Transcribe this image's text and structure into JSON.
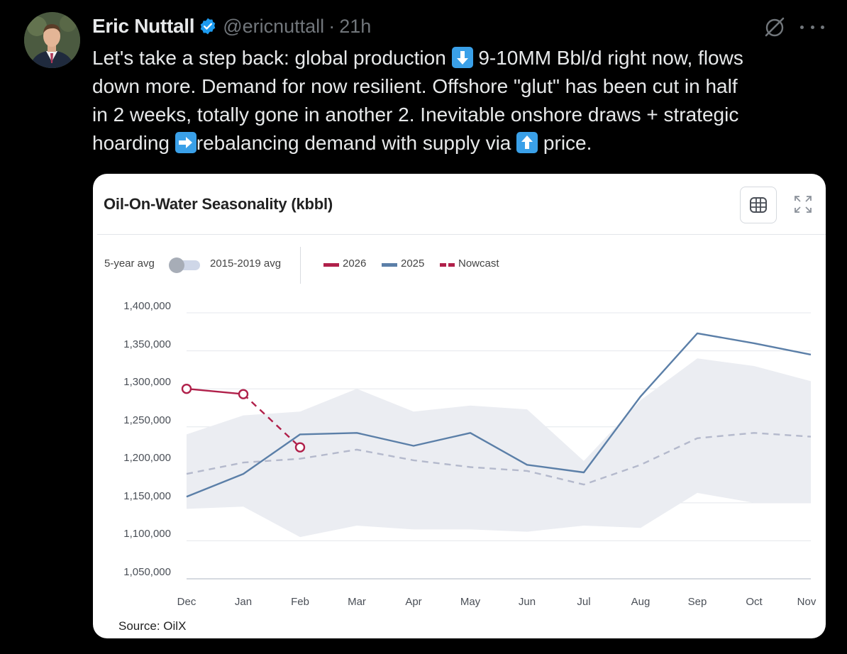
{
  "tweet": {
    "author_name": "Eric Nuttall",
    "handle": "@ericnuttall",
    "separator": "·",
    "time": "21h",
    "text_parts": [
      "Let's take a step back: global production ",
      " 9-10MM Bbl/d right now, flows\ndown more. Demand for now resilient. Offshore \"glut\" has been cut in half\nin 2 weeks, totally gone in another 2. Inevitable onshore draws + strategic\nhoarding ",
      "rebalancing demand with supply via ",
      " price."
    ],
    "emojis": [
      "down-arrow-emoji",
      "right-arrow-emoji",
      "up-arrow-emoji"
    ],
    "accent_color": "#1d9bf0"
  },
  "card": {
    "title": "Oil-On-Water Seasonality (kbbl)",
    "toggle_left": "5-year avg",
    "toggle_right": "2015-2019 avg",
    "source": "Source: OilX",
    "icons": [
      "table-icon",
      "expand-icon"
    ]
  },
  "chart_data": {
    "type": "line",
    "title": "Oil-On-Water Seasonality (kbbl)",
    "categories": [
      "Dec",
      "Jan",
      "Feb",
      "Mar",
      "Apr",
      "May",
      "Jun",
      "Jul",
      "Aug",
      "Sep",
      "Oct",
      "Nov"
    ],
    "ylim": [
      1050000,
      1400000
    ],
    "yticks": [
      1400000,
      1350000,
      1300000,
      1250000,
      1200000,
      1150000,
      1100000,
      1050000
    ],
    "ytick_labels": [
      "1,400,000",
      "1,350,000",
      "1,300,000",
      "1,250,000",
      "1,200,000",
      "1,150,000",
      "1,100,000",
      "1,050,000"
    ],
    "grid": true,
    "legend_position": "top-left",
    "series": [
      {
        "name": "2026",
        "color": "#b0204a",
        "style": "solid",
        "values": [
          1300000,
          1293000,
          null,
          null,
          null,
          null,
          null,
          null,
          null,
          null,
          null,
          null
        ]
      },
      {
        "name": "2025",
        "color": "#5b7fa8",
        "style": "solid",
        "values": [
          1158000,
          1188000,
          1240000,
          1242000,
          1225000,
          1242000,
          1200000,
          1190000,
          1290000,
          1373000,
          1360000,
          1345000
        ]
      },
      {
        "name": "Nowcast",
        "color": "#b0204a",
        "style": "dashed",
        "values": [
          null,
          1293000,
          1223000,
          null,
          null,
          null,
          null,
          null,
          null,
          null,
          null,
          null
        ]
      }
    ],
    "range_band": {
      "color": "#ebedf2",
      "upper": [
        1240000,
        1265000,
        1270000,
        1300000,
        1270000,
        1278000,
        1273000,
        1205000,
        1285000,
        1340000,
        1330000,
        1310000
      ],
      "lower": [
        1142000,
        1145000,
        1105000,
        1120000,
        1115000,
        1115000,
        1112000,
        1120000,
        1117000,
        1163000,
        1150000,
        1150000
      ]
    },
    "average": {
      "color": "#b4b9cc",
      "style": "dashed",
      "values": [
        1188000,
        1203000,
        1208000,
        1220000,
        1206000,
        1197000,
        1192000,
        1174000,
        1200000,
        1235000,
        1242000,
        1237000
      ]
    }
  }
}
